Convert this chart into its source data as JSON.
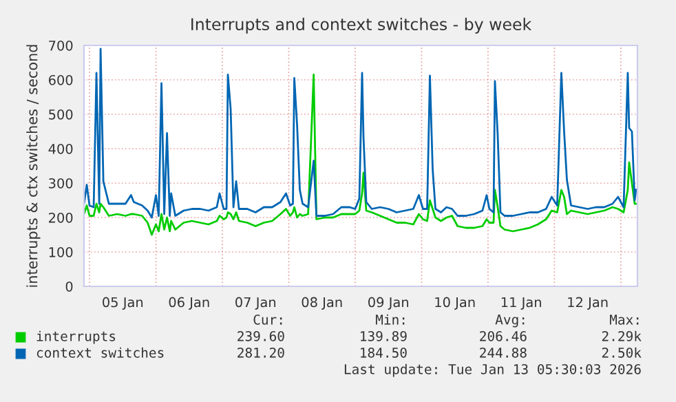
{
  "chart_data": {
    "type": "line",
    "title": "Interrupts and context switches - by week",
    "ylabel": "interrupts & ctx switches / second",
    "x": [
      "2026-01-04T22:00",
      "2026-01-04T23:00",
      "2026-01-05T00:00",
      "2026-01-05T01:30",
      "2026-01-05T02:30",
      "2026-01-05T03:30",
      "2026-01-05T04:00",
      "2026-01-05T05:00",
      "2026-01-05T07:00",
      "2026-01-05T10:00",
      "2026-01-05T13:00",
      "2026-01-05T15:00",
      "2026-01-05T16:00",
      "2026-01-05T19:00",
      "2026-01-05T21:00",
      "2026-01-05T22:30",
      "2026-01-06T00:00",
      "2026-01-06T01:00",
      "2026-01-06T02:00",
      "2026-01-06T03:00",
      "2026-01-06T04:00",
      "2026-01-06T05:00",
      "2026-01-06T05:30",
      "2026-01-06T07:00",
      "2026-01-06T10:00",
      "2026-01-06T13:00",
      "2026-01-06T16:00",
      "2026-01-06T19:00",
      "2026-01-06T22:00",
      "2026-01-06T23:00",
      "2026-01-07T00:30",
      "2026-01-07T01:30",
      "2026-01-07T02:00",
      "2026-01-07T03:00",
      "2026-01-07T04:00",
      "2026-01-07T05:00",
      "2026-01-07T06:00",
      "2026-01-07T09:00",
      "2026-01-07T12:00",
      "2026-01-07T15:00",
      "2026-01-07T18:00",
      "2026-01-07T21:00",
      "2026-01-07T23:00",
      "2026-01-08T00:30",
      "2026-01-08T01:30",
      "2026-01-08T02:00",
      "2026-01-08T03:00",
      "2026-01-08T04:00",
      "2026-01-08T05:00",
      "2026-01-08T07:00",
      "2026-01-08T09:00",
      "2026-01-08T10:00",
      "2026-01-08T13:00",
      "2026-01-08T16:00",
      "2026-01-08T19:00",
      "2026-01-08T22:00",
      "2026-01-09T00:00",
      "2026-01-09T01:30",
      "2026-01-09T02:30",
      "2026-01-09T03:00",
      "2026-01-09T04:00",
      "2026-01-09T06:00",
      "2026-01-09T09:00",
      "2026-01-09T12:00",
      "2026-01-09T15:00",
      "2026-01-09T18:00",
      "2026-01-09T21:00",
      "2026-01-09T23:00",
      "2026-01-10T00:30",
      "2026-01-10T02:00",
      "2026-01-10T03:00",
      "2026-01-10T04:00",
      "2026-01-10T05:00",
      "2026-01-10T07:00",
      "2026-01-10T09:00",
      "2026-01-10T11:00",
      "2026-01-10T13:00",
      "2026-01-10T16:00",
      "2026-01-10T19:00",
      "2026-01-10T22:00",
      "2026-01-10T23:30",
      "2026-01-11T00:30",
      "2026-01-11T02:00",
      "2026-01-11T02:30",
      "2026-01-11T03:30",
      "2026-01-11T04:30",
      "2026-01-11T06:00",
      "2026-01-11T09:00",
      "2026-01-11T12:00",
      "2026-01-11T15:00",
      "2026-01-11T18:00",
      "2026-01-11T21:00",
      "2026-01-11T23:00",
      "2026-01-12T01:00",
      "2026-01-12T02:30",
      "2026-01-12T03:30",
      "2026-01-12T04:30",
      "2026-01-12T06:00",
      "2026-01-12T09:00",
      "2026-01-12T12:00",
      "2026-01-12T15:00",
      "2026-01-12T18:00",
      "2026-01-12T21:00",
      "2026-01-12T23:00",
      "2026-01-13T01:00",
      "2026-01-13T02:30",
      "2026-01-13T03:00",
      "2026-01-13T04:00",
      "2026-01-13T05:00",
      "2026-01-13T05:30"
    ],
    "series": [
      {
        "name": "interrupts",
        "color": "#00cc00",
        "values": [
          210,
          235,
          205,
          205,
          240,
          215,
          240,
          230,
          205,
          210,
          205,
          210,
          210,
          205,
          185,
          150,
          180,
          160,
          210,
          165,
          200,
          160,
          190,
          165,
          185,
          190,
          185,
          180,
          190,
          205,
          195,
          200,
          215,
          210,
          195,
          215,
          190,
          185,
          175,
          185,
          190,
          210,
          225,
          205,
          215,
          230,
          200,
          210,
          205,
          210,
          615,
          195,
          200,
          200,
          210,
          210,
          210,
          220,
          270,
          330,
          220,
          215,
          205,
          195,
          185,
          185,
          180,
          210,
          195,
          190,
          250,
          225,
          200,
          190,
          200,
          205,
          175,
          170,
          170,
          175,
          195,
          185,
          185,
          280,
          230,
          175,
          165,
          160,
          165,
          170,
          180,
          195,
          220,
          215,
          280,
          260,
          210,
          220,
          215,
          210,
          215,
          220,
          230,
          225,
          215,
          280,
          360,
          300,
          240,
          240
        ]
      },
      {
        "name": "context switches",
        "color": "#0066b3",
        "values": [
          240,
          295,
          235,
          230,
          620,
          240,
          690,
          305,
          240,
          240,
          240,
          265,
          245,
          235,
          220,
          200,
          265,
          205,
          590,
          210,
          445,
          205,
          270,
          205,
          220,
          225,
          225,
          220,
          230,
          270,
          225,
          225,
          615,
          515,
          230,
          305,
          225,
          225,
          215,
          230,
          230,
          245,
          270,
          235,
          240,
          605,
          470,
          280,
          240,
          230,
          365,
          205,
          205,
          210,
          230,
          230,
          225,
          255,
          620,
          435,
          245,
          225,
          230,
          225,
          215,
          220,
          225,
          265,
          225,
          225,
          612,
          340,
          225,
          215,
          230,
          225,
          205,
          205,
          210,
          220,
          265,
          225,
          215,
          596,
          440,
          215,
          205,
          205,
          210,
          215,
          215,
          225,
          260,
          235,
          620,
          450,
          310,
          235,
          230,
          225,
          230,
          230,
          240,
          260,
          230,
          620,
          460,
          450,
          250,
          281
        ]
      }
    ],
    "xlim": [
      "2026-01-04T22:00",
      "2026-01-13T06:00"
    ],
    "xticks": [
      {
        "value": "2026-01-05T00:00",
        "label": null
      },
      {
        "value": "2026-01-05T12:00",
        "label": "05 Jan"
      },
      {
        "value": "2026-01-06T00:00",
        "label": null
      },
      {
        "value": "2026-01-06T12:00",
        "label": "06 Jan"
      },
      {
        "value": "2026-01-07T00:00",
        "label": null
      },
      {
        "value": "2026-01-07T12:00",
        "label": "07 Jan"
      },
      {
        "value": "2026-01-08T00:00",
        "label": null
      },
      {
        "value": "2026-01-08T12:00",
        "label": "08 Jan"
      },
      {
        "value": "2026-01-09T00:00",
        "label": null
      },
      {
        "value": "2026-01-09T12:00",
        "label": "09 Jan"
      },
      {
        "value": "2026-01-10T00:00",
        "label": null
      },
      {
        "value": "2026-01-10T12:00",
        "label": "10 Jan"
      },
      {
        "value": "2026-01-11T00:00",
        "label": null
      },
      {
        "value": "2026-01-11T12:00",
        "label": "11 Jan"
      },
      {
        "value": "2026-01-12T00:00",
        "label": null
      },
      {
        "value": "2026-01-12T12:00",
        "label": "12 Jan"
      },
      {
        "value": "2026-01-13T00:00",
        "label": null
      }
    ],
    "ylim": [
      0,
      700
    ],
    "yticks": [
      0,
      100,
      200,
      300,
      400,
      500,
      600,
      700
    ],
    "grid": true,
    "legend": "bottom",
    "annotations": [
      "Cur:",
      "Min:",
      "Avg:",
      "Max:",
      "239.60",
      "139.89",
      "206.46",
      "2.29k",
      "281.20",
      "184.50",
      "244.88",
      "2.50k",
      "Last update: Tue Jan 13 05:30:03 2026"
    ]
  }
}
